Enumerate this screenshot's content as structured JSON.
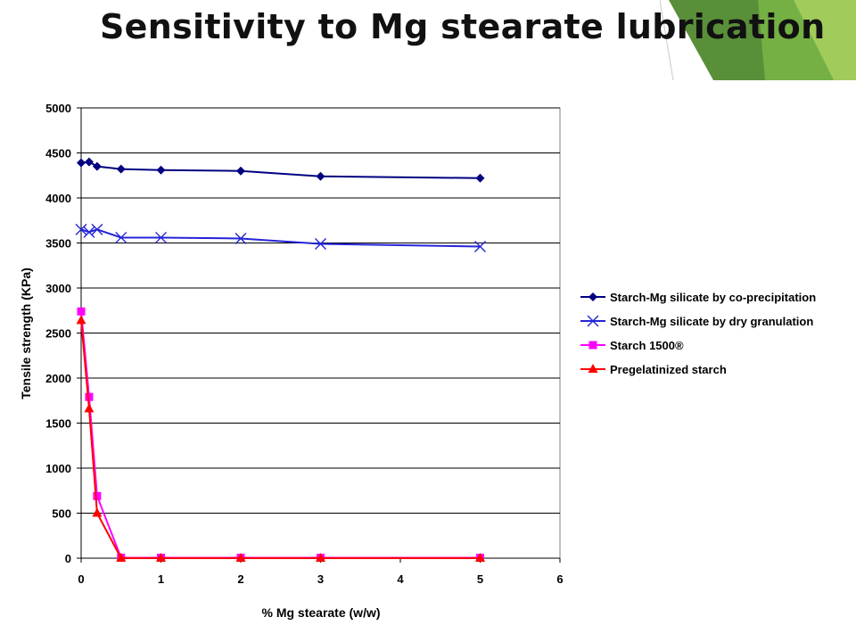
{
  "slide": {
    "title": "Sensitivity to Mg stearate lubrication"
  },
  "colors": {
    "deco_dark": "#5a8f3a",
    "deco_mid": "#74b043",
    "deco_light": "#a9d05e"
  },
  "chart_data": {
    "type": "line",
    "title": "",
    "xlabel": "% Mg stearate (w/w)",
    "ylabel": "Tensile strength (KPa)",
    "xlim": [
      0,
      6
    ],
    "ylim": [
      0,
      5000
    ],
    "xticks": [
      0,
      1,
      2,
      3,
      4,
      5,
      6
    ],
    "yticks": [
      0,
      500,
      1000,
      1500,
      2000,
      2500,
      3000,
      3500,
      4000,
      4500,
      5000
    ],
    "grid": "horizontal",
    "legend_position": "right",
    "series": [
      {
        "name": "Starch-Mg silicate by co-precipitation",
        "color": "#000080",
        "marker": "diamond",
        "x": [
          0,
          0.1,
          0.2,
          0.5,
          1,
          2,
          3,
          5
        ],
        "y": [
          4390,
          4400,
          4350,
          4320,
          4310,
          4300,
          4240,
          4220
        ]
      },
      {
        "name": "Starch-Mg silicate by dry granulation",
        "color": "#2424d8",
        "marker": "x",
        "x": [
          0,
          0.1,
          0.2,
          0.5,
          1,
          2,
          3,
          5
        ],
        "y": [
          3650,
          3620,
          3650,
          3560,
          3560,
          3550,
          3490,
          3460
        ]
      },
      {
        "name": "Starch 1500®",
        "color": "#ff00ff",
        "marker": "square",
        "x": [
          0,
          0.1,
          0.2,
          0.5,
          1,
          2,
          3,
          5
        ],
        "y": [
          2740,
          1790,
          690,
          5,
          5,
          5,
          5,
          5
        ]
      },
      {
        "name": "Pregelatinized starch",
        "color": "#ff0000",
        "marker": "triangle",
        "x": [
          0,
          0.1,
          0.2,
          0.5,
          1,
          2,
          3,
          5
        ],
        "y": [
          2640,
          1660,
          500,
          0,
          0,
          0,
          0,
          0
        ]
      }
    ]
  }
}
